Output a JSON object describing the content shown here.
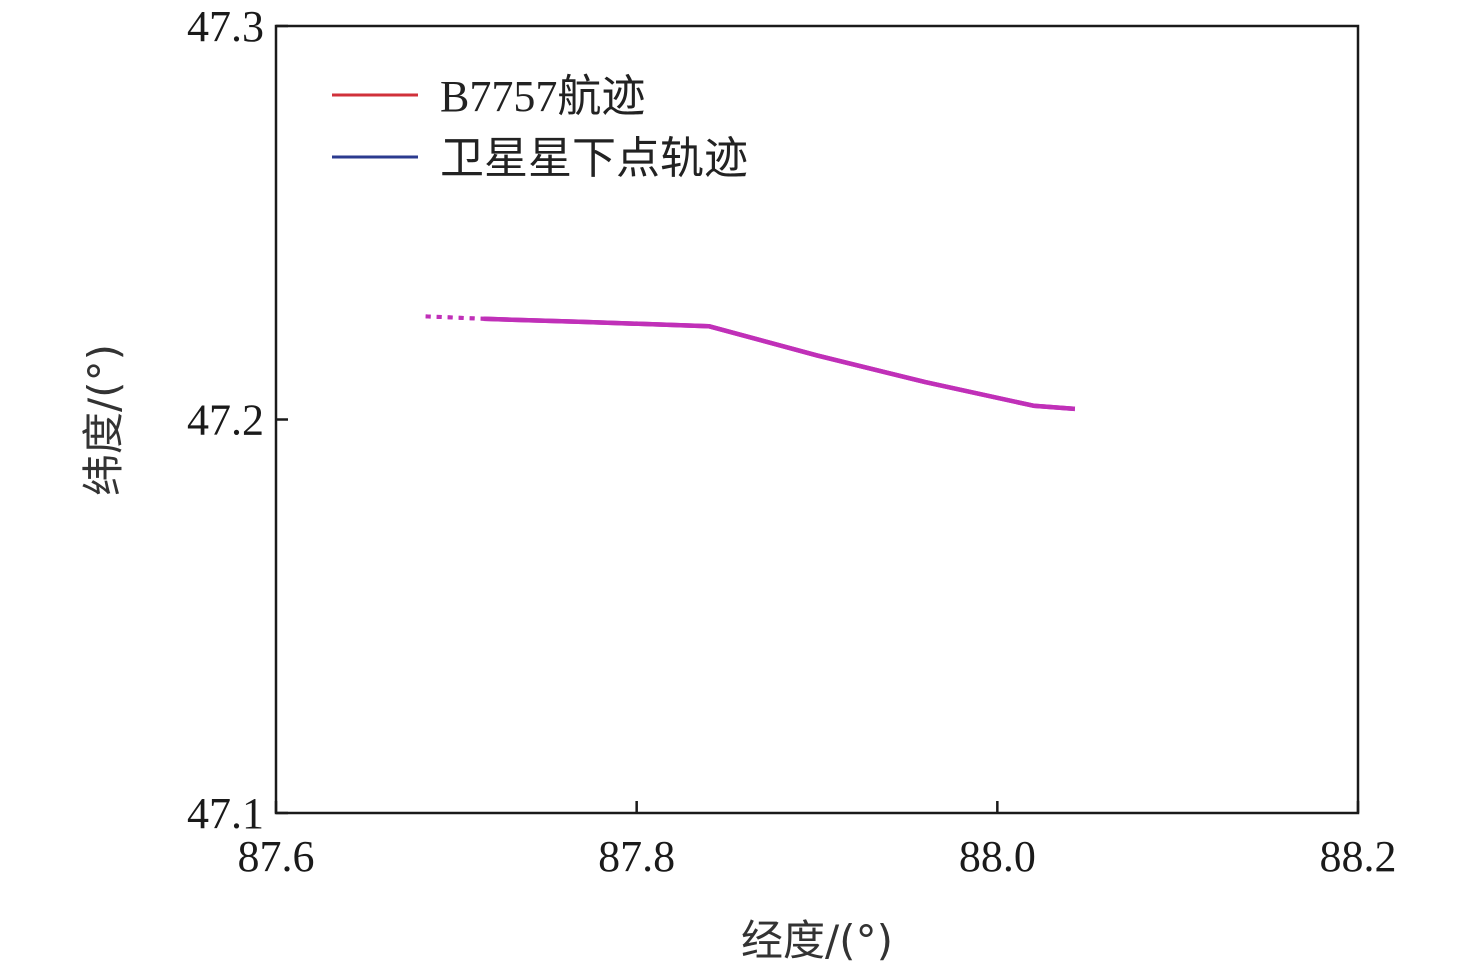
{
  "chart_data": {
    "type": "line",
    "title": "",
    "xlabel": "经度/(°)",
    "ylabel": "纬度/(°)",
    "xlim": [
      87.6,
      88.2
    ],
    "ylim": [
      47.1,
      47.3
    ],
    "xticks": [
      87.6,
      87.8,
      88.0,
      88.2
    ],
    "yticks": [
      47.1,
      47.2,
      47.3
    ],
    "xtick_labels": [
      "87.6",
      "87.8",
      "88.0",
      "88.2"
    ],
    "ytick_labels": [
      "47.1",
      "47.2",
      "47.3"
    ],
    "grid": false,
    "legend_position": "top-left",
    "series": [
      {
        "name": "B7757航迹",
        "color": "#d0313a",
        "x": [
          87.683,
          87.715,
          87.77,
          87.84,
          87.9,
          87.96,
          88.02,
          88.043
        ],
        "y": [
          47.2262,
          47.2256,
          47.2248,
          47.2237,
          47.2163,
          47.2095,
          47.2035,
          47.2027
        ]
      },
      {
        "name": "卫星星下点轨迹",
        "color": "#2b3b8f",
        "x": [
          87.683,
          87.715,
          87.77,
          87.84,
          87.9,
          87.96,
          88.02,
          88.043
        ],
        "y": [
          47.2262,
          47.2256,
          47.2248,
          47.2237,
          47.2163,
          47.2095,
          47.2035,
          47.2027
        ]
      }
    ],
    "overlap_color": "#c030b8"
  }
}
